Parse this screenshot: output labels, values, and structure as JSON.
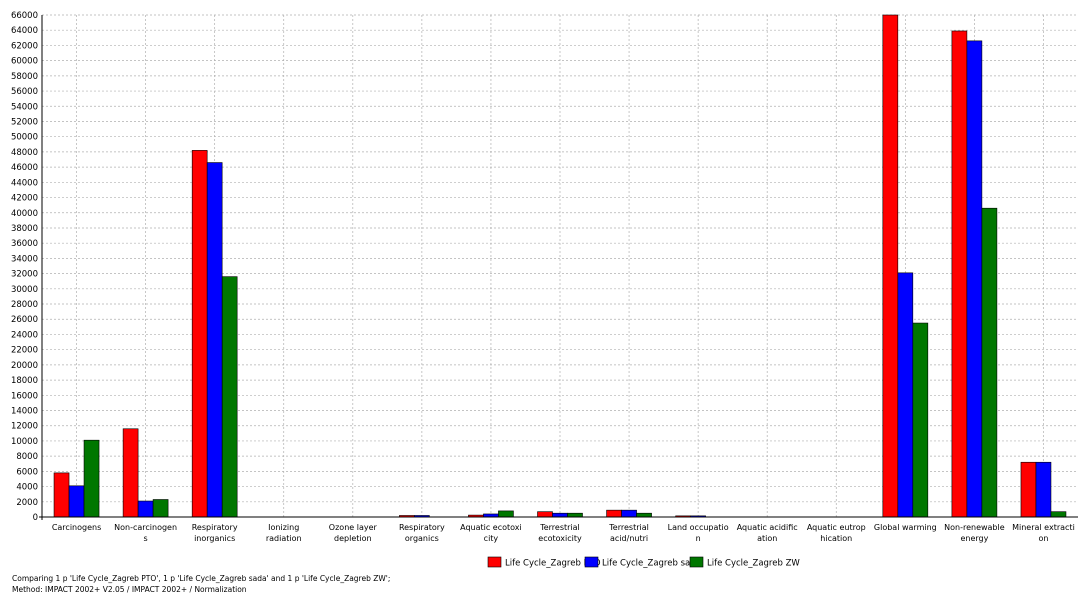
{
  "chart_data": {
    "type": "bar",
    "title": "",
    "xlabel": "",
    "ylabel": "",
    "ylim": [
      0,
      66000
    ],
    "y_tick_step": 2000,
    "grid": true,
    "legend_position": "bottom",
    "categories": [
      [
        "Carcinogens"
      ],
      [
        "Non-carcinogen",
        "s"
      ],
      [
        "Respiratory",
        "inorganics"
      ],
      [
        "Ionizing",
        "radiation"
      ],
      [
        "Ozone layer",
        "depletion"
      ],
      [
        "Respiratory",
        "organics"
      ],
      [
        "Aquatic ecotoxi",
        "city"
      ],
      [
        "Terrestrial",
        "ecotoxicity"
      ],
      [
        "Terrestrial",
        "acid/nutri"
      ],
      [
        "Land occupatio",
        "n"
      ],
      [
        "Aquatic acidific",
        "ation"
      ],
      [
        "Aquatic eutrop",
        "hication"
      ],
      [
        "Global warming"
      ],
      [
        "Non-renewable",
        "energy"
      ],
      [
        "Mineral extracti",
        "on"
      ]
    ],
    "series": [
      {
        "name": "Life Cycle_Zagreb PTO",
        "color": "#ff0000",
        "values": [
          5800,
          11600,
          48200,
          0,
          0,
          200,
          250,
          700,
          900,
          150,
          0,
          0,
          67000,
          63900,
          7200
        ]
      },
      {
        "name": "Life Cycle_Zagreb sada",
        "color": "#0000ff",
        "values": [
          4100,
          2100,
          46600,
          0,
          0,
          200,
          400,
          500,
          900,
          150,
          0,
          0,
          32100,
          62600,
          7200
        ]
      },
      {
        "name": "Life Cycle_Zagreb ZW",
        "color": "#007700",
        "values": [
          10100,
          2300,
          31600,
          0,
          0,
          0,
          800,
          500,
          500,
          0,
          0,
          0,
          25500,
          40600,
          700
        ]
      }
    ]
  },
  "caption": {
    "line1": "Comparing 1 p 'Life Cycle_Zagreb PTO', 1 p 'Life Cycle_Zagreb sada' and 1 p 'Life Cycle_Zagreb ZW';",
    "line2": "Method: IMPACT 2002+ V2.05 / IMPACT 2002+ / Normalization"
  }
}
